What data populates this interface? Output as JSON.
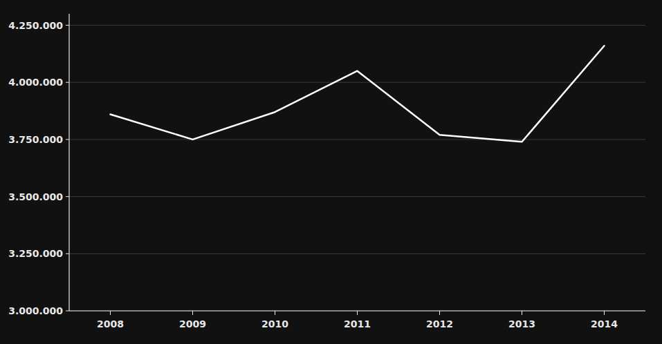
{
  "chart_data": {
    "type": "line",
    "x": [
      2008,
      2009,
      2010,
      2011,
      2012,
      2013,
      2014
    ],
    "values": [
      3860000,
      3750000,
      3870000,
      4050000,
      3770000,
      3740000,
      4160000
    ],
    "color": "#ffffff",
    "xlim": [
      2007.5,
      2014.5
    ],
    "xticks": [
      2008,
      2009,
      2010,
      2011,
      2012,
      2013,
      2014
    ],
    "ylim": [
      3000000,
      4300000
    ],
    "yticks": [
      {
        "value": 3000000,
        "label": "3.000.000"
      },
      {
        "value": 3250000,
        "label": "3.250.000"
      },
      {
        "value": 3500000,
        "label": "3.500.000"
      },
      {
        "value": 3750000,
        "label": "3.750.000"
      },
      {
        "value": 4000000,
        "label": "4.000.000"
      },
      {
        "value": 4250000,
        "label": "4.250.000"
      }
    ],
    "grid": true
  }
}
